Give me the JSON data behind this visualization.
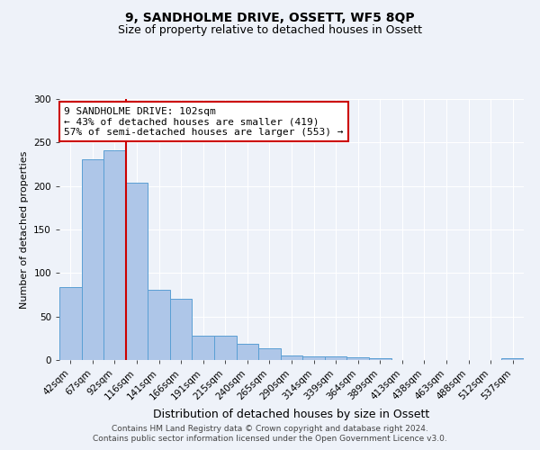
{
  "title": "9, SANDHOLME DRIVE, OSSETT, WF5 8QP",
  "subtitle": "Size of property relative to detached houses in Ossett",
  "xlabel": "Distribution of detached houses by size in Ossett",
  "ylabel": "Number of detached properties",
  "categories": [
    "42sqm",
    "67sqm",
    "92sqm",
    "116sqm",
    "141sqm",
    "166sqm",
    "191sqm",
    "215sqm",
    "240sqm",
    "265sqm",
    "290sqm",
    "314sqm",
    "339sqm",
    "364sqm",
    "389sqm",
    "413sqm",
    "438sqm",
    "463sqm",
    "488sqm",
    "512sqm",
    "537sqm"
  ],
  "values": [
    84,
    231,
    241,
    204,
    81,
    70,
    28,
    28,
    19,
    13,
    5,
    4,
    4,
    3,
    2,
    0,
    0,
    0,
    0,
    0,
    2
  ],
  "bar_color": "#aec6e8",
  "bar_edgecolor": "#5a9fd4",
  "bar_width": 1.0,
  "ylim": [
    0,
    300
  ],
  "yticks": [
    0,
    50,
    100,
    150,
    200,
    250,
    300
  ],
  "property_line_x": 2.5,
  "property_line_color": "#cc0000",
  "annotation_text": "9 SANDHOLME DRIVE: 102sqm\n← 43% of detached houses are smaller (419)\n57% of semi-detached houses are larger (553) →",
  "annotation_box_edgecolor": "#cc0000",
  "annotation_box_facecolor": "white",
  "footer1": "Contains HM Land Registry data © Crown copyright and database right 2024.",
  "footer2": "Contains public sector information licensed under the Open Government Licence v3.0.",
  "background_color": "#eef2f9",
  "grid_color": "#ffffff",
  "title_fontsize": 10,
  "subtitle_fontsize": 9,
  "xlabel_fontsize": 9,
  "ylabel_fontsize": 8,
  "tick_fontsize": 7.5,
  "annotation_fontsize": 8,
  "footer_fontsize": 6.5
}
